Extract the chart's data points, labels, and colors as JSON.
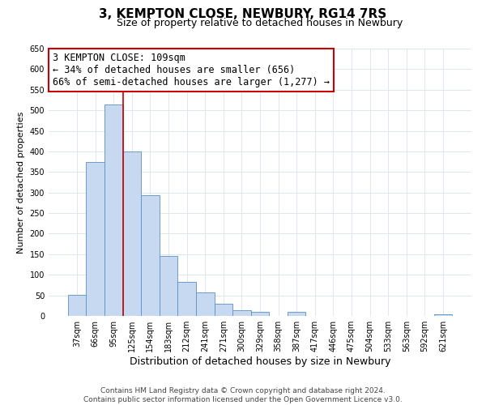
{
  "title": "3, KEMPTON CLOSE, NEWBURY, RG14 7RS",
  "subtitle": "Size of property relative to detached houses in Newbury",
  "xlabel": "Distribution of detached houses by size in Newbury",
  "ylabel": "Number of detached properties",
  "bar_labels": [
    "37sqm",
    "66sqm",
    "95sqm",
    "125sqm",
    "154sqm",
    "183sqm",
    "212sqm",
    "241sqm",
    "271sqm",
    "300sqm",
    "329sqm",
    "358sqm",
    "387sqm",
    "417sqm",
    "446sqm",
    "475sqm",
    "504sqm",
    "533sqm",
    "563sqm",
    "592sqm",
    "621sqm"
  ],
  "bar_values": [
    52,
    375,
    515,
    400,
    293,
    145,
    82,
    57,
    30,
    13,
    10,
    0,
    10,
    0,
    0,
    0,
    0,
    0,
    0,
    0,
    3
  ],
  "bar_color": "#c6d9f0",
  "bar_edge_color": "#5a8fc3",
  "vline_color": "#cc0000",
  "annotation_line1": "3 KEMPTON CLOSE: 109sqm",
  "annotation_line2": "← 34% of detached houses are smaller (656)",
  "annotation_line3": "66% of semi-detached houses are larger (1,277) →",
  "annotation_box_edgecolor": "#cc0000",
  "annotation_fontsize": 8.5,
  "ylim": [
    0,
    650
  ],
  "yticks": [
    0,
    50,
    100,
    150,
    200,
    250,
    300,
    350,
    400,
    450,
    500,
    550,
    600,
    650
  ],
  "footer_line1": "Contains HM Land Registry data © Crown copyright and database right 2024.",
  "footer_line2": "Contains public sector information licensed under the Open Government Licence v3.0.",
  "background_color": "#ffffff",
  "grid_color": "#dce6f1",
  "title_fontsize": 11,
  "subtitle_fontsize": 9,
  "xlabel_fontsize": 9,
  "ylabel_fontsize": 8,
  "tick_fontsize": 7,
  "footer_fontsize": 6.5
}
